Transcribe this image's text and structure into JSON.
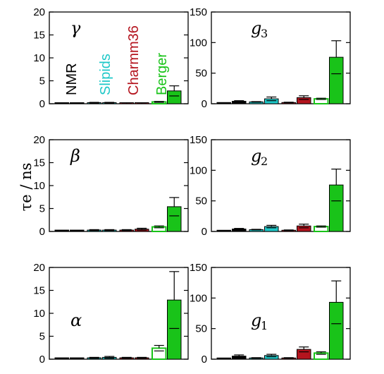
{
  "colors": {
    "nmr": "#000000",
    "slipids": "#1ec8c8",
    "charmm36": "#b4141e",
    "berger": "#19c319",
    "berger_open": "#19c319"
  },
  "ylabel": "τe / ns",
  "legend": [
    "NMR",
    "Slipids",
    "Charmm36",
    "Berger"
  ],
  "chart_data": [
    {
      "type": "bar",
      "panel_label": "γ",
      "panel_sub": "",
      "ylim": [
        0,
        20
      ],
      "yticks": [
        0,
        5,
        10,
        15,
        20
      ],
      "groups": [
        {
          "name": "NMR",
          "values": [
            0.1,
            0.1
          ],
          "errors": [
            0,
            0
          ]
        },
        {
          "name": "Slipids",
          "values": [
            0.2,
            0.2
          ],
          "errors": [
            0.1,
            0.1
          ]
        },
        {
          "name": "Charmm36",
          "values": [
            0.1,
            0.1
          ],
          "errors": [
            0.1,
            0.1
          ]
        },
        {
          "name": "Berger",
          "values": [
            0.4,
            2.8
          ],
          "errors": [
            0.1,
            1.1
          ]
        }
      ]
    },
    {
      "type": "bar",
      "panel_label": "g",
      "panel_sub": "3",
      "ylim": [
        0,
        150
      ],
      "yticks": [
        0,
        50,
        100,
        150
      ],
      "groups": [
        {
          "name": "NMR",
          "values": [
            2,
            4
          ],
          "errors": [
            0,
            1
          ]
        },
        {
          "name": "Slipids",
          "values": [
            3,
            8
          ],
          "errors": [
            0.5,
            3
          ]
        },
        {
          "name": "Charmm36",
          "values": [
            2,
            10
          ],
          "errors": [
            0.5,
            3
          ]
        },
        {
          "name": "Berger",
          "values": [
            8,
            76
          ],
          "errors": [
            1,
            27
          ]
        }
      ]
    },
    {
      "type": "bar",
      "panel_label": "β",
      "panel_sub": "",
      "ylim": [
        0,
        20
      ],
      "yticks": [
        0,
        5,
        10,
        15,
        20
      ],
      "groups": [
        {
          "name": "NMR",
          "values": [
            0.3,
            0.3
          ],
          "errors": [
            0,
            0
          ]
        },
        {
          "name": "Slipids",
          "values": [
            0.3,
            0.3
          ],
          "errors": [
            0.1,
            0.1
          ]
        },
        {
          "name": "Charmm36",
          "values": [
            0.3,
            0.5
          ],
          "errors": [
            0.1,
            0.2
          ]
        },
        {
          "name": "Berger",
          "values": [
            1.0,
            5.4
          ],
          "errors": [
            0.2,
            2.0
          ]
        }
      ]
    },
    {
      "type": "bar",
      "panel_label": "g",
      "panel_sub": "2",
      "ylim": [
        0,
        150
      ],
      "yticks": [
        0,
        50,
        100,
        150
      ],
      "groups": [
        {
          "name": "NMR",
          "values": [
            2,
            4
          ],
          "errors": [
            0,
            1
          ]
        },
        {
          "name": "Slipids",
          "values": [
            3,
            8
          ],
          "errors": [
            0.5,
            2
          ]
        },
        {
          "name": "Charmm36",
          "values": [
            2,
            9
          ],
          "errors": [
            0.5,
            3
          ]
        },
        {
          "name": "Berger",
          "values": [
            8,
            76
          ],
          "errors": [
            1,
            26
          ]
        }
      ]
    },
    {
      "type": "bar",
      "panel_label": "α",
      "panel_sub": "",
      "ylim": [
        0,
        20
      ],
      "yticks": [
        0,
        5,
        10,
        15,
        20
      ],
      "groups": [
        {
          "name": "NMR",
          "values": [
            0.3,
            0.3
          ],
          "errors": [
            0,
            0
          ]
        },
        {
          "name": "Slipids",
          "values": [
            0.3,
            0.4
          ],
          "errors": [
            0.1,
            0.2
          ]
        },
        {
          "name": "Charmm36",
          "values": [
            0.3,
            0.3
          ],
          "errors": [
            0.1,
            0.1
          ]
        },
        {
          "name": "Berger",
          "values": [
            2.4,
            12.9
          ],
          "errors": [
            0.6,
            6.2
          ]
        }
      ]
    },
    {
      "type": "bar",
      "panel_label": "g",
      "panel_sub": "1",
      "ylim": [
        0,
        150
      ],
      "yticks": [
        0,
        50,
        100,
        150
      ],
      "groups": [
        {
          "name": "NMR",
          "values": [
            2,
            5
          ],
          "errors": [
            0,
            2
          ]
        },
        {
          "name": "Slipids",
          "values": [
            2,
            6
          ],
          "errors": [
            0.5,
            2
          ]
        },
        {
          "name": "Charmm36",
          "values": [
            2,
            16
          ],
          "errors": [
            0.5,
            4
          ]
        },
        {
          "name": "Berger",
          "values": [
            10,
            93
          ],
          "errors": [
            2,
            35
          ]
        }
      ]
    }
  ]
}
